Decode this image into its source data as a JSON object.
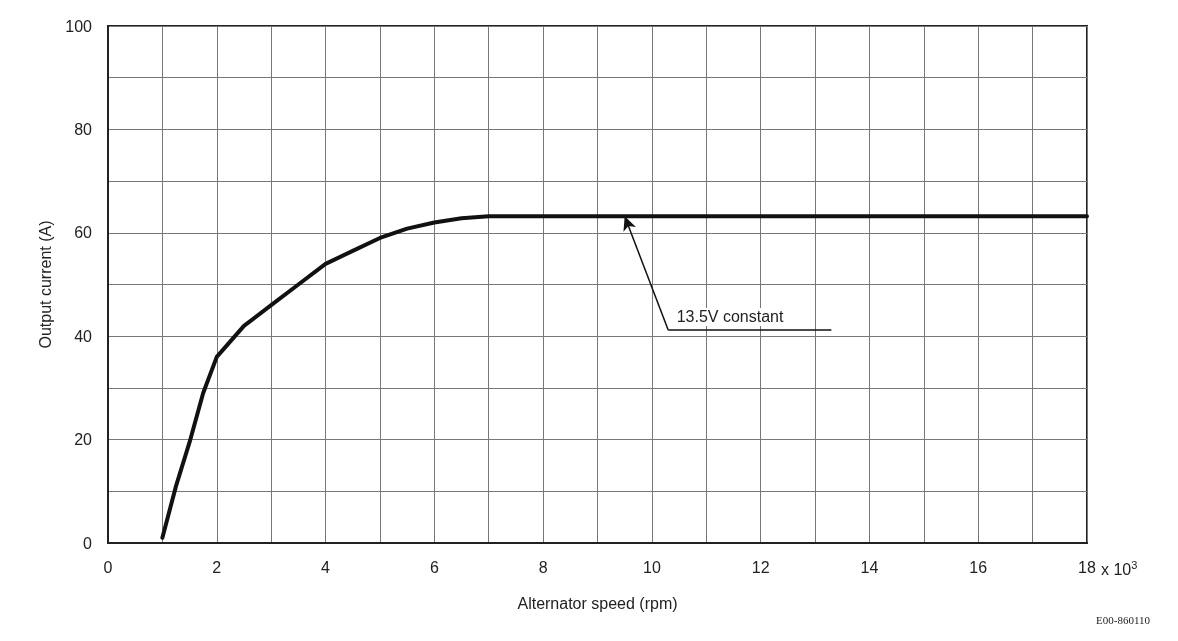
{
  "chart_data": {
    "type": "line",
    "xlabel": "Alternator speed (rpm)",
    "ylabel": "Output current (A)",
    "x": [
      1,
      1.25,
      1.5,
      1.75,
      2,
      2.5,
      3,
      3.5,
      4,
      4.5,
      5,
      5.5,
      6,
      6.5,
      7,
      8,
      10,
      12,
      14,
      16,
      18
    ],
    "series": [
      {
        "color": "#111111",
        "values": [
          1,
          11,
          19.5,
          29,
          36,
          42,
          46,
          50,
          54,
          56.5,
          59,
          60.8,
          62,
          62.8,
          63.2,
          63.2,
          63.2,
          63.2,
          63.2,
          63.2,
          63.2
        ]
      }
    ],
    "xlim": [
      0,
      18
    ],
    "xticks": [
      0,
      {
        "value": 1,
        "label": null
      },
      2,
      {
        "value": 3,
        "label": null
      },
      4,
      {
        "value": 5,
        "label": null
      },
      6,
      {
        "value": 7,
        "label": null
      },
      8,
      {
        "value": 9,
        "label": null
      },
      10,
      {
        "value": 11,
        "label": null
      },
      12,
      {
        "value": 13,
        "label": null
      },
      14,
      {
        "value": 15,
        "label": null
      },
      16,
      {
        "value": 17,
        "label": null
      },
      18
    ],
    "ylim": [
      0,
      100
    ],
    "yticks": [
      0,
      {
        "value": 10,
        "label": null
      },
      20,
      {
        "value": 30,
        "label": null
      },
      40,
      {
        "value": 50,
        "label": null
      },
      60,
      {
        "value": 70,
        "label": null
      },
      80,
      {
        "value": 90,
        "label": null
      },
      100
    ],
    "grid": true,
    "marker": "none",
    "line_style": "solid",
    "annotations": [
      {
        "text": "13.5V constant",
        "x": 9.5,
        "y": 63.2
      },
      "x 10$^{3}$",
      "E00-860110"
    ]
  }
}
